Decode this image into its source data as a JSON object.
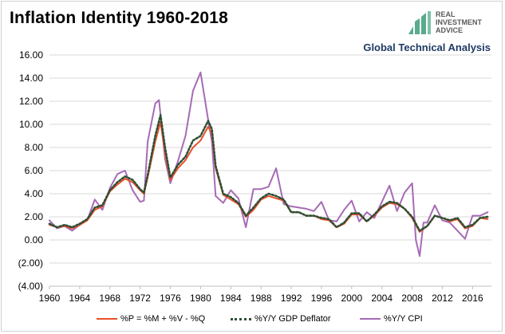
{
  "header": {
    "title": "Inflation Identity 1960-2018",
    "subtitle": "Global Technical Analysis"
  },
  "logo": {
    "icon": "rising-bars-logo-icon",
    "line1": "REAL",
    "line2": "INVESTMENT",
    "line3": "ADVICE"
  },
  "colors": {
    "identity": "#e8502a",
    "deflator": "#2f4f35",
    "cpi": "#a66bb5",
    "logo_green": "#5aaa8c"
  },
  "chart_data": {
    "type": "line",
    "title": "Inflation Identity 1960-2018",
    "xlabel": "",
    "ylabel": "",
    "xlim": [
      1960,
      2018.5
    ],
    "ylim": [
      -4,
      16
    ],
    "y_ticks": [
      "16.00",
      "14.00",
      "12.00",
      "10.00",
      "8.00",
      "6.00",
      "4.00",
      "2.00",
      "0.00",
      "(2.00)",
      "(4.00)"
    ],
    "x_ticks": [
      "1960",
      "1964",
      "1968",
      "1972",
      "1976",
      "1980",
      "1984",
      "1988",
      "1992",
      "1996",
      "2000",
      "2004",
      "2008",
      "2012",
      "2016"
    ],
    "grid": "horizontal",
    "legend_position": "bottom",
    "series": [
      {
        "name": "%P = %M + %V - %Q",
        "style": "solid",
        "points": [
          [
            1960,
            1.3
          ],
          [
            1961,
            1.1
          ],
          [
            1962,
            1.2
          ],
          [
            1963,
            1.0
          ],
          [
            1964,
            1.3
          ],
          [
            1965,
            1.7
          ],
          [
            1966,
            2.6
          ],
          [
            1967,
            2.9
          ],
          [
            1968,
            4.2
          ],
          [
            1969,
            4.8
          ],
          [
            1970,
            5.3
          ],
          [
            1971,
            5.0
          ],
          [
            1972,
            4.3
          ],
          [
            1972.5,
            4.0
          ],
          [
            1973,
            5.4
          ],
          [
            1974,
            8.5
          ],
          [
            1974.7,
            10.2
          ],
          [
            1975.3,
            7.5
          ],
          [
            1976,
            5.2
          ],
          [
            1977,
            6.2
          ],
          [
            1978,
            6.9
          ],
          [
            1979,
            8.0
          ],
          [
            1980,
            8.6
          ],
          [
            1981,
            9.8
          ],
          [
            1981.5,
            9.2
          ],
          [
            1982,
            6.2
          ],
          [
            1983,
            3.9
          ],
          [
            1984,
            3.5
          ],
          [
            1985,
            3.1
          ],
          [
            1986,
            2.0
          ],
          [
            1987,
            2.6
          ],
          [
            1988,
            3.5
          ],
          [
            1989,
            3.8
          ],
          [
            1990,
            3.6
          ],
          [
            1991,
            3.4
          ],
          [
            1992,
            2.4
          ],
          [
            1993,
            2.4
          ],
          [
            1994,
            2.1
          ],
          [
            1995,
            2.1
          ],
          [
            1996,
            1.8
          ],
          [
            1997,
            1.7
          ],
          [
            1998,
            1.1
          ],
          [
            1999,
            1.4
          ],
          [
            2000,
            2.2
          ],
          [
            2001,
            2.2
          ],
          [
            2002,
            1.6
          ],
          [
            2003,
            2.1
          ],
          [
            2004,
            2.8
          ],
          [
            2005,
            3.2
          ],
          [
            2006,
            3.1
          ],
          [
            2007,
            2.7
          ],
          [
            2008,
            1.9
          ],
          [
            2009,
            0.7
          ],
          [
            2010,
            1.2
          ],
          [
            2011,
            2.1
          ],
          [
            2012,
            1.9
          ],
          [
            2013,
            1.6
          ],
          [
            2014,
            1.8
          ],
          [
            2015,
            1.0
          ],
          [
            2016,
            1.2
          ],
          [
            2017,
            1.9
          ],
          [
            2018,
            1.8
          ]
        ]
      },
      {
        "name": "%Y/Y GDP Deflator",
        "style": "dotted",
        "points": [
          [
            1960,
            1.4
          ],
          [
            1961,
            1.1
          ],
          [
            1962,
            1.3
          ],
          [
            1963,
            1.1
          ],
          [
            1964,
            1.4
          ],
          [
            1965,
            1.8
          ],
          [
            1966,
            2.8
          ],
          [
            1967,
            3.0
          ],
          [
            1968,
            4.3
          ],
          [
            1969,
            5.0
          ],
          [
            1970,
            5.5
          ],
          [
            1971,
            5.2
          ],
          [
            1972,
            4.4
          ],
          [
            1972.5,
            4.1
          ],
          [
            1973,
            5.6
          ],
          [
            1974,
            9.0
          ],
          [
            1974.7,
            10.8
          ],
          [
            1975.3,
            8.0
          ],
          [
            1976,
            5.4
          ],
          [
            1977,
            6.5
          ],
          [
            1978,
            7.2
          ],
          [
            1979,
            8.6
          ],
          [
            1980,
            9.0
          ],
          [
            1981,
            10.3
          ],
          [
            1981.5,
            9.6
          ],
          [
            1982,
            6.4
          ],
          [
            1983,
            4.0
          ],
          [
            1984,
            3.7
          ],
          [
            1985,
            3.2
          ],
          [
            1986,
            2.1
          ],
          [
            1987,
            2.8
          ],
          [
            1988,
            3.6
          ],
          [
            1989,
            4.0
          ],
          [
            1990,
            3.8
          ],
          [
            1991,
            3.5
          ],
          [
            1992,
            2.4
          ],
          [
            1993,
            2.4
          ],
          [
            1994,
            2.1
          ],
          [
            1995,
            2.1
          ],
          [
            1996,
            1.9
          ],
          [
            1997,
            1.8
          ],
          [
            1998,
            1.1
          ],
          [
            1999,
            1.5
          ],
          [
            2000,
            2.3
          ],
          [
            2001,
            2.3
          ],
          [
            2002,
            1.6
          ],
          [
            2003,
            2.2
          ],
          [
            2004,
            2.9
          ],
          [
            2005,
            3.3
          ],
          [
            2006,
            3.2
          ],
          [
            2007,
            2.7
          ],
          [
            2008,
            2.0
          ],
          [
            2009,
            0.8
          ],
          [
            2010,
            1.2
          ],
          [
            2011,
            2.1
          ],
          [
            2012,
            1.9
          ],
          [
            2013,
            1.7
          ],
          [
            2014,
            1.9
          ],
          [
            2015,
            1.1
          ],
          [
            2016,
            1.3
          ],
          [
            2017,
            1.9
          ],
          [
            2018,
            2.0
          ]
        ]
      },
      {
        "name": "%Y/Y CPI",
        "style": "solid",
        "points": [
          [
            1960,
            1.7
          ],
          [
            1961,
            1.0
          ],
          [
            1962,
            1.2
          ],
          [
            1963,
            0.8
          ],
          [
            1964,
            1.3
          ],
          [
            1965,
            1.7
          ],
          [
            1966,
            3.5
          ],
          [
            1967,
            2.6
          ],
          [
            1968,
            4.5
          ],
          [
            1969,
            5.7
          ],
          [
            1970,
            6.0
          ],
          [
            1971,
            4.3
          ],
          [
            1972,
            3.3
          ],
          [
            1972.5,
            3.4
          ],
          [
            1973,
            8.5
          ],
          [
            1974,
            11.8
          ],
          [
            1974.5,
            12.1
          ],
          [
            1975.3,
            7.0
          ],
          [
            1976,
            4.9
          ],
          [
            1977,
            6.8
          ],
          [
            1978,
            9.0
          ],
          [
            1979,
            12.9
          ],
          [
            1980,
            14.5
          ],
          [
            1981,
            10.4
          ],
          [
            1981.5,
            8.5
          ],
          [
            1982,
            3.8
          ],
          [
            1983,
            3.2
          ],
          [
            1984,
            4.3
          ],
          [
            1985,
            3.6
          ],
          [
            1986,
            1.1
          ],
          [
            1987,
            4.4
          ],
          [
            1988,
            4.4
          ],
          [
            1989,
            4.6
          ],
          [
            1990,
            6.2
          ],
          [
            1991,
            3.1
          ],
          [
            1992,
            2.9
          ],
          [
            1993,
            2.8
          ],
          [
            1994,
            2.7
          ],
          [
            1995,
            2.5
          ],
          [
            1996,
            3.3
          ],
          [
            1997,
            1.7
          ],
          [
            1998,
            1.6
          ],
          [
            1999,
            2.6
          ],
          [
            2000,
            3.4
          ],
          [
            2001,
            1.6
          ],
          [
            2002,
            2.4
          ],
          [
            2003,
            1.9
          ],
          [
            2004,
            3.3
          ],
          [
            2005,
            4.7
          ],
          [
            2006,
            2.5
          ],
          [
            2007,
            4.1
          ],
          [
            2008,
            4.9
          ],
          [
            2008.5,
            0.0
          ],
          [
            2009,
            -1.4
          ],
          [
            2009.5,
            1.5
          ],
          [
            2010,
            1.5
          ],
          [
            2011,
            3.0
          ],
          [
            2012,
            1.7
          ],
          [
            2013,
            1.5
          ],
          [
            2014,
            0.8
          ],
          [
            2015,
            0.1
          ],
          [
            2016,
            2.1
          ],
          [
            2017,
            2.1
          ],
          [
            2018,
            2.4
          ]
        ]
      }
    ]
  }
}
